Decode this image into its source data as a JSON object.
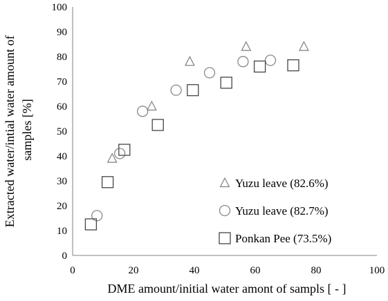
{
  "chart_data": {
    "type": "scatter",
    "title": "",
    "xlabel": "DME amount/initial water amont of sampls [ - ]",
    "ylabel_lines": [
      "Extracted water/intial water amount of",
      "samples [%]"
    ],
    "xlim": [
      0,
      100
    ],
    "ylim": [
      0,
      100
    ],
    "x_ticks": [
      0,
      20,
      40,
      60,
      80,
      100
    ],
    "y_ticks": [
      0,
      10,
      20,
      30,
      40,
      50,
      60,
      70,
      80,
      90,
      100
    ],
    "grid": false,
    "legend_position": "bottom-right",
    "series": [
      {
        "name": "Yuzu leave (82.6%)",
        "marker": "triangle",
        "color": "#888888",
        "points": [
          [
            13,
            39
          ],
          [
            26,
            60
          ],
          [
            38.5,
            78
          ],
          [
            57,
            84
          ],
          [
            76,
            84
          ]
        ]
      },
      {
        "name": "Yuzu leave (82.7%)",
        "marker": "circle",
        "color": "#888888",
        "points": [
          [
            8,
            16
          ],
          [
            15.5,
            41
          ],
          [
            23,
            58
          ],
          [
            34,
            66.5
          ],
          [
            45,
            73.5
          ],
          [
            56,
            78
          ],
          [
            65,
            78.5
          ]
        ]
      },
      {
        "name": "Ponkan Pee (73.5%)",
        "marker": "square",
        "color": "#444444",
        "points": [
          [
            6,
            12.5
          ],
          [
            11.5,
            29.5
          ],
          [
            17,
            42.5
          ],
          [
            28,
            52.5
          ],
          [
            39.5,
            66.5
          ],
          [
            50.5,
            69.5
          ],
          [
            61.5,
            76
          ],
          [
            72.5,
            76.5
          ]
        ]
      }
    ]
  }
}
